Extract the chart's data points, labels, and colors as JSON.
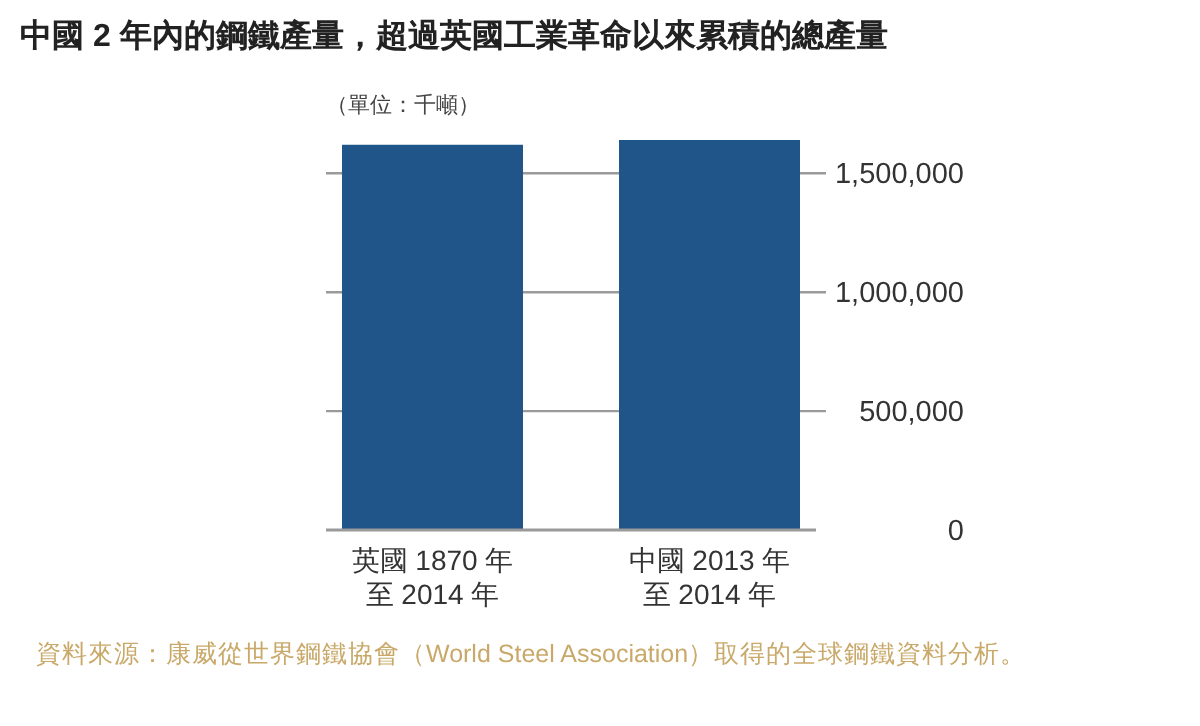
{
  "chart_data": {
    "type": "bar",
    "title": "中國 2 年內的鋼鐵產量，超過英國工業革命以來累積的總產量",
    "ylabel": "（單位：千噸）",
    "categories": [
      "英國 1870 年至 2014 年",
      "中國 2013 年至 2014 年"
    ],
    "values": [
      1620000,
      1640000
    ],
    "color": "#20558a",
    "ylim": [
      0,
      1640000
    ],
    "yticks": [
      0,
      {
        "value": 500000,
        "label": "500,000"
      },
      {
        "value": 1000000,
        "label": "1,000,000"
      },
      {
        "value": 1500000,
        "label": "1,500,000"
      }
    ],
    "grid": "y",
    "annotations": [
      "資料來源：康威從世界鋼鐵協會（World Steel Association）取得的全球鋼鐵資料分析。"
    ]
  }
}
